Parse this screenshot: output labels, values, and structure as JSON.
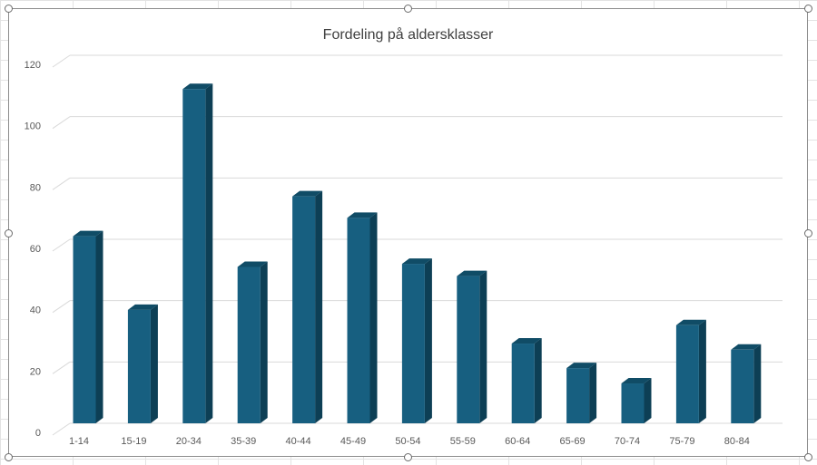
{
  "chart_data": {
    "type": "bar",
    "title": "Fordeling på aldersklasser",
    "categories": [
      "1-14",
      "15-19",
      "20-34",
      "35-39",
      "40-44",
      "45-49",
      "50-54",
      "55-59",
      "60-64",
      "65-69",
      "70-74",
      "75-79",
      "80-84"
    ],
    "series": [
      {
        "values": [
          61,
          37,
          109,
          51,
          74,
          67,
          52,
          48,
          26,
          18,
          13,
          32,
          24
        ]
      }
    ],
    "ylim": [
      0,
      120
    ],
    "yticks": [
      0,
      20,
      40,
      60,
      80,
      100,
      120
    ],
    "xlabel": "",
    "ylabel": "",
    "grid": true,
    "style": "3d-column",
    "colors": {
      "bar_front": "#175f80",
      "bar_side": "#0d3f55",
      "bar_top": "#104c66",
      "gridline": "#d9d9d9",
      "axis_text": "#595959"
    }
  }
}
